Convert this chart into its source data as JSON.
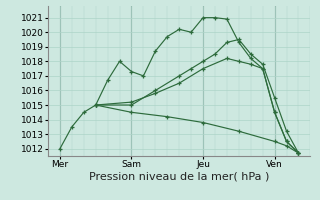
{
  "background_color": "#cde8e0",
  "grid_color": "#add4c8",
  "line_color": "#2d6b3c",
  "ylim": [
    1011.5,
    1021.8
  ],
  "yticks": [
    1012,
    1013,
    1014,
    1015,
    1016,
    1017,
    1018,
    1019,
    1020,
    1021
  ],
  "xlabel": "Pression niveau de la mer( hPa )",
  "xlabel_fontsize": 8,
  "tick_fontsize": 6.5,
  "day_labels": [
    "Mer",
    "Sam",
    "Jeu",
    "Ven"
  ],
  "day_positions": [
    0,
    3,
    6,
    9
  ],
  "vline_positions": [
    0,
    3,
    6,
    9
  ],
  "lines": [
    {
      "x": [
        0,
        0.5,
        1.0,
        1.5,
        2.0,
        2.5,
        3.0,
        3.5,
        4.0,
        4.5,
        5.0,
        5.5,
        6.0,
        6.5,
        7.0,
        7.5,
        8.0,
        8.5,
        9.0,
        9.5,
        10.0
      ],
      "y": [
        1012.0,
        1013.5,
        1014.5,
        1015.0,
        1016.7,
        1018.0,
        1017.3,
        1017.0,
        1018.7,
        1019.7,
        1020.2,
        1020.0,
        1021.0,
        1021.0,
        1020.9,
        1019.3,
        1018.2,
        1017.5,
        1014.5,
        1012.5,
        1011.7
      ]
    },
    {
      "x": [
        1.5,
        3.0,
        4.0,
        5.0,
        5.5,
        6.0,
        6.5,
        7.0,
        7.5,
        8.0,
        8.5,
        9.0,
        9.5,
        10.0
      ],
      "y": [
        1015.0,
        1015.0,
        1016.0,
        1017.0,
        1017.5,
        1018.0,
        1018.5,
        1019.3,
        1019.5,
        1018.5,
        1017.8,
        1015.5,
        1013.2,
        1011.7
      ]
    },
    {
      "x": [
        1.5,
        3.0,
        4.0,
        5.0,
        6.0,
        7.0,
        7.5,
        8.0,
        8.5,
        9.0,
        9.5,
        10.0
      ],
      "y": [
        1015.0,
        1015.2,
        1015.8,
        1016.5,
        1017.5,
        1018.2,
        1018.0,
        1017.8,
        1017.5,
        1014.5,
        1012.5,
        1011.7
      ]
    },
    {
      "x": [
        1.5,
        3.0,
        4.5,
        6.0,
        7.5,
        9.0,
        9.5,
        10.0
      ],
      "y": [
        1015.0,
        1014.5,
        1014.2,
        1013.8,
        1013.2,
        1012.5,
        1012.2,
        1011.7
      ]
    }
  ]
}
